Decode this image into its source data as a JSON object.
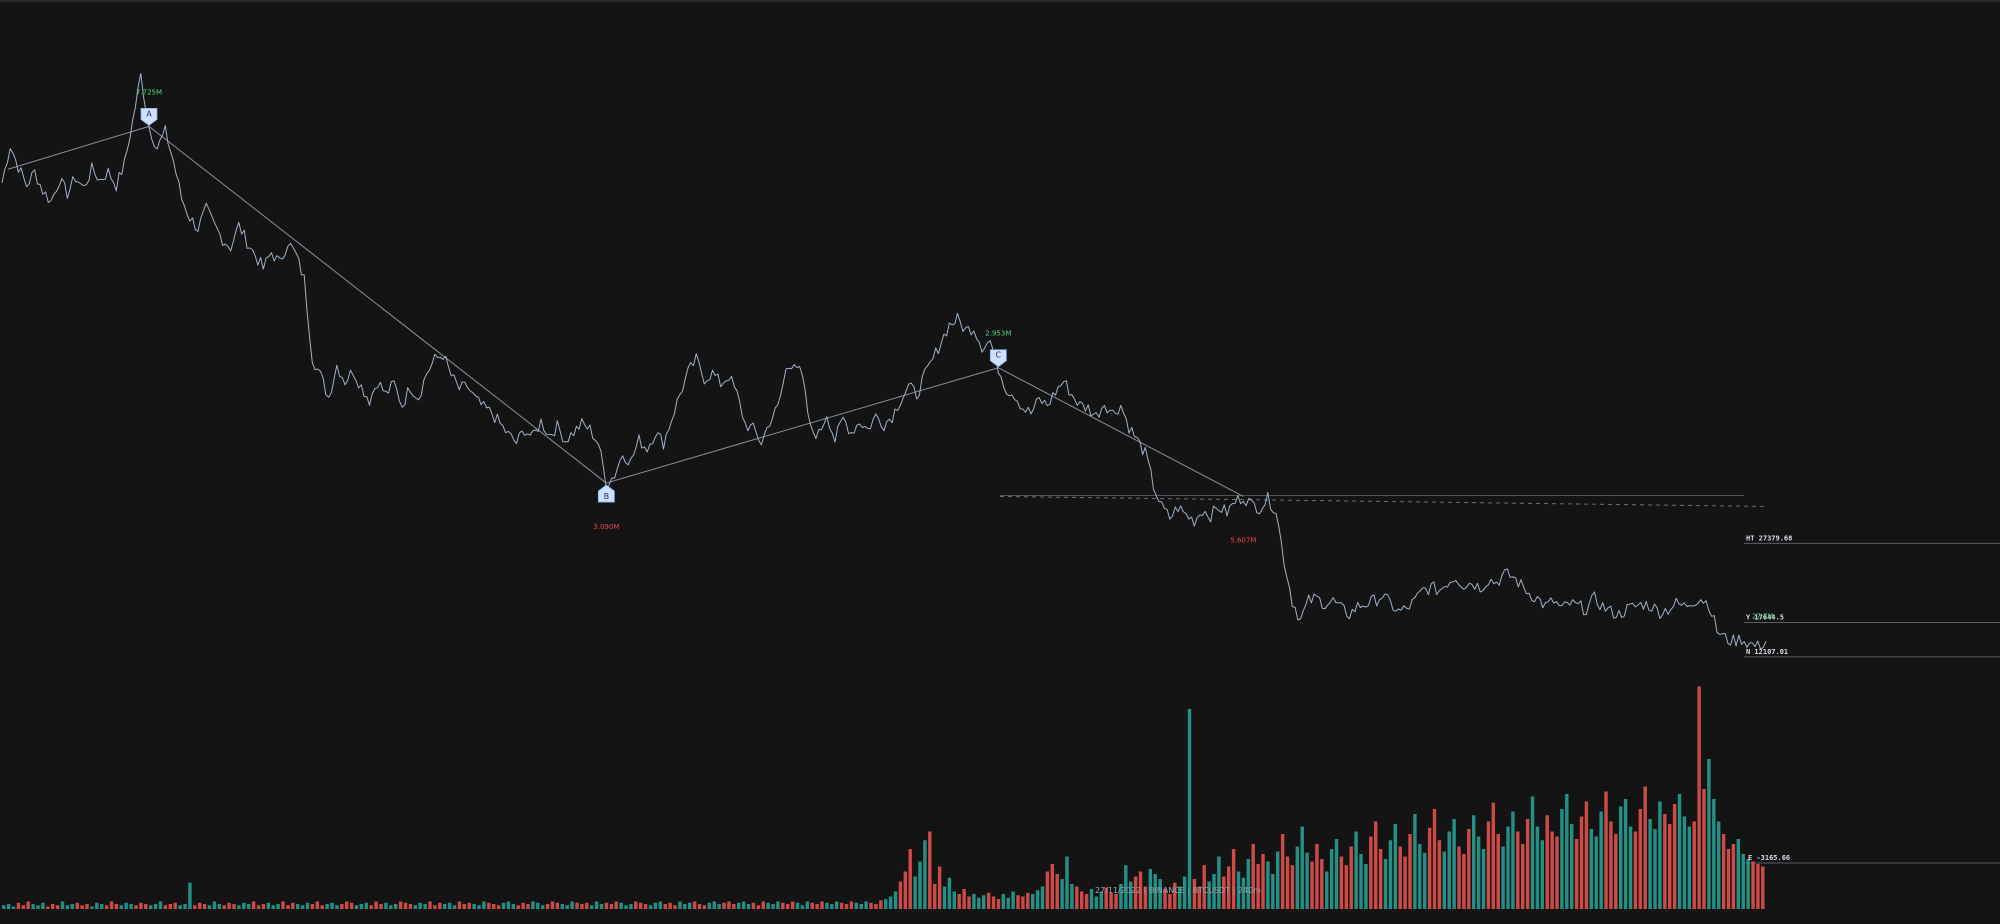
{
  "chart_data": {
    "type": "line",
    "series": [
      {
        "values": [
          28500,
          29900,
          29100,
          28400,
          28900,
          28200,
          27800,
          28600,
          28100,
          28700,
          28300,
          29000,
          28600,
          28900,
          28400,
          29200,
          30800,
          32500,
          30600,
          29800,
          30400,
          29300,
          27900,
          27200,
          26800,
          27500,
          26900,
          26400,
          26100,
          26900,
          26300,
          25800,
          25300,
          25900,
          25500,
          26300,
          25800,
          24900,
          22000,
          21300,
          20500,
          21700,
          21100,
          21500,
          20900,
          20400,
          21100,
          20600,
          21000,
          20200,
          20900,
          20500,
          21400,
          21900,
          22100,
          21300,
          20800,
          20900,
          20400,
          20100,
          19900,
          19500,
          19100,
          18800,
          19300,
          19000,
          19600,
          19100,
          19400,
          18900,
          19200,
          19500,
          19300,
          18800,
          17300,
          17600,
          18400,
          18100,
          18900,
          18600,
          19200,
          18800,
          19700,
          20600,
          21400,
          21900,
          21200,
          21400,
          21000,
          21300,
          20600,
          19500,
          19300,
          18800,
          19600,
          20100,
          21500,
          21900,
          21200,
          19300,
          19100,
          19900,
          18900,
          19700,
          19200,
          19600,
          19300,
          19800,
          19500,
          19800,
          20400,
          20900,
          20600,
          21300,
          21900,
          22600,
          23200,
          23400,
          23000,
          23100,
          22400,
          22600,
          21600,
          20800,
          20600,
          20100,
          19900,
          20400,
          20200,
          20700,
          21100,
          20600,
          20200,
          20100,
          19800,
          20300,
          19900,
          20200,
          19400,
          18900,
          18400,
          17200,
          16400,
          16000,
          16400,
          16100,
          15900,
          16300,
          16100,
          16400,
          16200,
          16600,
          16800,
          16500,
          16400,
          16700,
          16300,
          14400,
          12900,
          12200,
          12900,
          13000,
          12800,
          12900,
          12600,
          12400,
          12700,
          12800,
          12900,
          13100,
          12800,
          12500,
          12600,
          12900,
          13300,
          13400,
          13300,
          13600,
          13800,
          13500,
          13600,
          13400,
          13700,
          13600,
          13900,
          13800,
          13500,
          13200,
          13000,
          12700,
          12900,
          12600,
          12800,
          12700,
          12600,
          13000,
          12700,
          12500,
          12400,
          12600,
          12700,
          12800,
          12700,
          12500,
          12600,
          12800,
          12700,
          12900,
          13000,
          12800,
          11800,
          11500,
          11400,
          11500,
          11300,
          11200,
          11400
        ]
      }
    ],
    "pivots": [
      {
        "label": "A",
        "volume": "7.725M",
        "color": "#4ade80"
      },
      {
        "label": "B",
        "volume": "3.090M",
        "color": "#ef4444"
      },
      {
        "label": "C",
        "volume": "2.953M",
        "color": "#4ade80"
      },
      {
        "label": "",
        "volume": "5.607M",
        "color": "#ef4444"
      }
    ],
    "levels": [
      {
        "text": "HT 27379.68",
        "value": 15050
      },
      {
        "text": "Y 17644.5",
        "value": 12100
      },
      {
        "text": "N 12107.01",
        "value": 10820
      }
    ],
    "volume_level": {
      "text": "E -3165.66"
    },
    "current_volume_label": "27.7M",
    "volume_bars": [
      3,
      4,
      2,
      5,
      3,
      6,
      4,
      3,
      5,
      2,
      4,
      3,
      6,
      3,
      4,
      5,
      3,
      4,
      2,
      5,
      4,
      3,
      6,
      4,
      3,
      5,
      4,
      3,
      5,
      4,
      3,
      4,
      6,
      3,
      4,
      5,
      3,
      4,
      21,
      3,
      5,
      4,
      3,
      6,
      4,
      3,
      5,
      4,
      3,
      5,
      4,
      6,
      3,
      4,
      5,
      3,
      4,
      6,
      3,
      5,
      4,
      3,
      5,
      4,
      6,
      3,
      4,
      5,
      3,
      4,
      6,
      5,
      3,
      4,
      5,
      3,
      6,
      4,
      5,
      3,
      4,
      6,
      5,
      4,
      3,
      5,
      4,
      6,
      3,
      5,
      4,
      5,
      3,
      6,
      4,
      5,
      4,
      3,
      6,
      5,
      4,
      3,
      5,
      6,
      4,
      3,
      5,
      4,
      6,
      5,
      3,
      4,
      6,
      5,
      4,
      3,
      6,
      5,
      4,
      5,
      3,
      6,
      4,
      5,
      4,
      6,
      5,
      3,
      4,
      6,
      5,
      4,
      3,
      5,
      6,
      4,
      5,
      3,
      6,
      4,
      5,
      6,
      4,
      3,
      5,
      6,
      4,
      5,
      6,
      4,
      5,
      6,
      4,
      5,
      3,
      6,
      5,
      4,
      6,
      5,
      4,
      6,
      5,
      3,
      6,
      5,
      4,
      6,
      5,
      4,
      6,
      5,
      4,
      6,
      5,
      4,
      6,
      5,
      4,
      7,
      8,
      10,
      14,
      22,
      30,
      48,
      26,
      38,
      55,
      62,
      20,
      34,
      18,
      25,
      14,
      12,
      16,
      10,
      12,
      9,
      11,
      13,
      10,
      8,
      12,
      9,
      14,
      11,
      10,
      13,
      12,
      15,
      18,
      30,
      36,
      28,
      24,
      42,
      20,
      18,
      14,
      12,
      16,
      10,
      14,
      17,
      13,
      12,
      20,
      35,
      22,
      26,
      30,
      18,
      32,
      28,
      24,
      16,
      12,
      21,
      18,
      26,
      160,
      24,
      18,
      35,
      22,
      28,
      42,
      26,
      34,
      48,
      30,
      25,
      40,
      52,
      36,
      44,
      38,
      28,
      46,
      60,
      42,
      35,
      50,
      66,
      45,
      38,
      52,
      40,
      30,
      48,
      56,
      42,
      35,
      50,
      62,
      44,
      36,
      58,
      70,
      48,
      40,
      55,
      68,
      50,
      42,
      60,
      76,
      52,
      45,
      65,
      80,
      55,
      46,
      62,
      72,
      50,
      44,
      64,
      75,
      58,
      48,
      70,
      85,
      60,
      50,
      66,
      78,
      62,
      52,
      72,
      90,
      66,
      55,
      75,
      62,
      58,
      80,
      92,
      68,
      56,
      74,
      86,
      64,
      58,
      78,
      94,
      70,
      60,
      82,
      88,
      66,
      62,
      80,
      98,
      72,
      64,
      86,
      76,
      68,
      84,
      92,
      74,
      66,
      70,
      178,
      96,
      120,
      88,
      70,
      60,
      48,
      52,
      56,
      44,
      40,
      38,
      36,
      34
    ],
    "footer": "27/11/2022 | BINANCE | BTCUSDT | 240m"
  }
}
